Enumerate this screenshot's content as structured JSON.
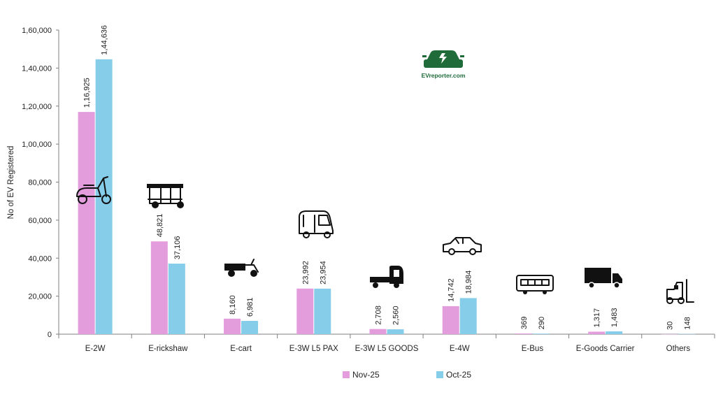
{
  "chart_data": {
    "type": "bar",
    "categories": [
      "E-2W",
      "E-rickshaw",
      "E-cart",
      "E-3W L5 PAX",
      "E-3W L5 GOODS",
      "E-4W",
      "E-Bus",
      "E-Goods Carrier",
      "Others"
    ],
    "series": [
      {
        "name": "Nov-25",
        "color": "#e39ddd",
        "values": [
          116925,
          48821,
          8160,
          23992,
          2708,
          14742,
          369,
          1317,
          30
        ],
        "labels": [
          "1,16,925",
          "48,821",
          "8,160",
          "23,992",
          "2,708",
          "14,742",
          "369",
          "1,317",
          "30"
        ]
      },
      {
        "name": "Oct-25",
        "color": "#86cdea",
        "values": [
          144636,
          37106,
          6981,
          23954,
          2560,
          18984,
          290,
          1483,
          148
        ],
        "labels": [
          "1,44,636",
          "37,106",
          "6,981",
          "23,954",
          "2,560",
          "18,984",
          "290",
          "1,483",
          "148"
        ]
      }
    ],
    "ylabel": "No of EV Registered",
    "ylim": [
      0,
      160000
    ],
    "yticks": [
      0,
      20000,
      40000,
      60000,
      80000,
      100000,
      120000,
      140000,
      160000
    ],
    "ytick_labels": [
      "0",
      "20,000",
      "40,000",
      "60,000",
      "80,000",
      "1,00,000",
      "1,20,000",
      "1,40,000",
      "1,60,000"
    ],
    "grid": false,
    "legend_position": "bottom-center",
    "icons": [
      "scooter-icon",
      "e-rickshaw-icon",
      "e-cart-icon",
      "auto-rickshaw-icon",
      "goods-three-wheeler-icon",
      "car-icon",
      "bus-icon",
      "truck-icon",
      "forklift-icon"
    ]
  },
  "logo": {
    "text": "EVreporter.com",
    "color": "#1f6b3a"
  }
}
